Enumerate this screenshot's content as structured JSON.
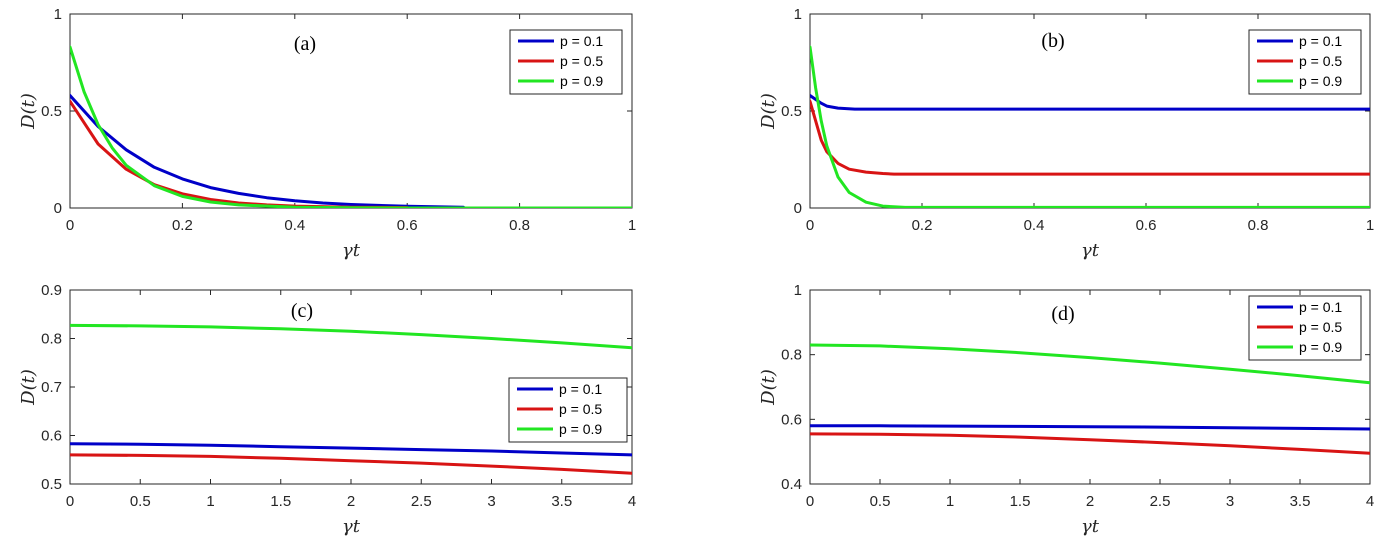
{
  "chart_data": [
    {
      "type": "line",
      "panel_label": "(a)",
      "xlabel": "γt",
      "ylabel": "D(t)",
      "xlim": [
        0,
        1
      ],
      "ylim": [
        0,
        1
      ],
      "xticks": [
        0,
        0.2,
        0.4,
        0.6,
        0.8,
        1
      ],
      "xtick_labels": [
        "0",
        "0.2",
        "0.4",
        "0.6",
        "0.8",
        "1"
      ],
      "yticks": [
        0,
        0.5,
        1
      ],
      "ytick_labels": [
        "0",
        "0.5",
        "1"
      ],
      "legend_position": "top-right",
      "series": [
        {
          "name": "p = 0.1",
          "color": "#0000c8",
          "x": [
            0,
            0.05,
            0.1,
            0.15,
            0.2,
            0.25,
            0.3,
            0.35,
            0.4,
            0.45,
            0.5,
            0.6,
            0.7
          ],
          "y": [
            0.58,
            0.42,
            0.3,
            0.21,
            0.15,
            0.105,
            0.075,
            0.053,
            0.037,
            0.026,
            0.018,
            0.009,
            0.004
          ]
        },
        {
          "name": "p = 0.5",
          "color": "#d81414",
          "x": [
            0,
            0.05,
            0.1,
            0.15,
            0.2,
            0.25,
            0.3,
            0.35,
            0.4,
            0.5,
            0.6
          ],
          "y": [
            0.55,
            0.33,
            0.2,
            0.12,
            0.073,
            0.044,
            0.026,
            0.016,
            0.01,
            0.004,
            0.002
          ]
        },
        {
          "name": "p = 0.9",
          "color": "#22e622",
          "x": [
            0,
            0.025,
            0.05,
            0.075,
            0.1,
            0.15,
            0.2,
            0.25,
            0.3,
            0.4,
            0.5,
            0.6,
            1.0
          ],
          "y": [
            0.83,
            0.6,
            0.43,
            0.31,
            0.22,
            0.115,
            0.06,
            0.031,
            0.016,
            0.004,
            0.001,
            0.0,
            0.0
          ]
        }
      ]
    },
    {
      "type": "line",
      "panel_label": "(b)",
      "xlabel": "γt",
      "ylabel": "D(t)",
      "xlim": [
        0,
        1
      ],
      "ylim": [
        0,
        1
      ],
      "xticks": [
        0,
        0.2,
        0.4,
        0.6,
        0.8,
        1
      ],
      "xtick_labels": [
        "0",
        "0.2",
        "0.4",
        "0.6",
        "0.8",
        "1"
      ],
      "yticks": [
        0,
        0.5,
        1
      ],
      "ytick_labels": [
        "0",
        "0.5",
        "1"
      ],
      "legend_position": "top-right",
      "series": [
        {
          "name": "p = 0.1",
          "color": "#0000c8",
          "x": [
            0,
            0.01,
            0.02,
            0.03,
            0.05,
            0.08,
            0.1,
            1.0
          ],
          "y": [
            0.58,
            0.56,
            0.54,
            0.525,
            0.515,
            0.51,
            0.51,
            0.51
          ]
        },
        {
          "name": "p = 0.5",
          "color": "#d81414",
          "x": [
            0,
            0.01,
            0.02,
            0.03,
            0.05,
            0.07,
            0.1,
            0.13,
            0.15,
            1.0
          ],
          "y": [
            0.55,
            0.45,
            0.35,
            0.29,
            0.23,
            0.2,
            0.185,
            0.178,
            0.175,
            0.175
          ]
        },
        {
          "name": "p = 0.9",
          "color": "#22e622",
          "x": [
            0,
            0.01,
            0.02,
            0.03,
            0.05,
            0.07,
            0.1,
            0.13,
            0.17,
            1.0
          ],
          "y": [
            0.83,
            0.62,
            0.45,
            0.32,
            0.16,
            0.08,
            0.03,
            0.01,
            0.003,
            0.003
          ]
        }
      ]
    },
    {
      "type": "line",
      "panel_label": "(c)",
      "xlabel": "γt",
      "ylabel": "D(t)",
      "xlim": [
        0,
        4
      ],
      "ylim": [
        0.5,
        0.9
      ],
      "xticks": [
        0,
        0.5,
        1,
        1.5,
        2,
        2.5,
        3,
        3.5,
        4
      ],
      "xtick_labels": [
        "0",
        "0.5",
        "1",
        "1.5",
        "2",
        "2.5",
        "3",
        "3.5",
        "4"
      ],
      "yticks": [
        0.5,
        0.6,
        0.7,
        0.8,
        0.9
      ],
      "ytick_labels": [
        "0.5",
        "0.6",
        "0.7",
        "0.8",
        "0.9"
      ],
      "legend_position": "center-right",
      "series": [
        {
          "name": "p = 0.1",
          "color": "#0000c8",
          "x": [
            0,
            0.5,
            1,
            1.5,
            2,
            2.5,
            3,
            3.5,
            4
          ],
          "y": [
            0.583,
            0.582,
            0.58,
            0.577,
            0.574,
            0.571,
            0.568,
            0.564,
            0.56
          ]
        },
        {
          "name": "p = 0.5",
          "color": "#d81414",
          "x": [
            0,
            0.5,
            1,
            1.5,
            2,
            2.5,
            3,
            3.5,
            4
          ],
          "y": [
            0.56,
            0.559,
            0.557,
            0.553,
            0.548,
            0.543,
            0.537,
            0.53,
            0.522
          ]
        },
        {
          "name": "p = 0.9",
          "color": "#22e622",
          "x": [
            0,
            0.5,
            1,
            1.5,
            2,
            2.5,
            3,
            3.5,
            4
          ],
          "y": [
            0.827,
            0.826,
            0.824,
            0.82,
            0.815,
            0.808,
            0.8,
            0.791,
            0.781
          ]
        }
      ]
    },
    {
      "type": "line",
      "panel_label": "(d)",
      "xlabel": "γt",
      "ylabel": "D(t)",
      "xlim": [
        0,
        4
      ],
      "ylim": [
        0.4,
        1
      ],
      "xticks": [
        0,
        0.5,
        1,
        1.5,
        2,
        2.5,
        3,
        3.5,
        4
      ],
      "xtick_labels": [
        "0",
        "0.5",
        "1",
        "1.5",
        "2",
        "2.5",
        "3",
        "3.5",
        "4"
      ],
      "yticks": [
        0.4,
        0.6,
        0.8,
        1
      ],
      "ytick_labels": [
        "0.4",
        "0.6",
        "0.8",
        "1"
      ],
      "legend_position": "top-right",
      "series": [
        {
          "name": "p = 0.1",
          "color": "#0000c8",
          "x": [
            0,
            0.5,
            1,
            1.5,
            2,
            2.5,
            3,
            3.5,
            4
          ],
          "y": [
            0.58,
            0.58,
            0.579,
            0.578,
            0.577,
            0.576,
            0.574,
            0.572,
            0.57
          ]
        },
        {
          "name": "p = 0.5",
          "color": "#d81414",
          "x": [
            0,
            0.5,
            1,
            1.5,
            2,
            2.5,
            3,
            3.5,
            4
          ],
          "y": [
            0.555,
            0.554,
            0.551,
            0.545,
            0.537,
            0.528,
            0.518,
            0.507,
            0.495
          ]
        },
        {
          "name": "p = 0.9",
          "color": "#22e622",
          "x": [
            0,
            0.5,
            1,
            1.5,
            2,
            2.5,
            3,
            3.5,
            4
          ],
          "y": [
            0.83,
            0.827,
            0.818,
            0.806,
            0.791,
            0.774,
            0.755,
            0.735,
            0.713
          ]
        }
      ]
    }
  ]
}
